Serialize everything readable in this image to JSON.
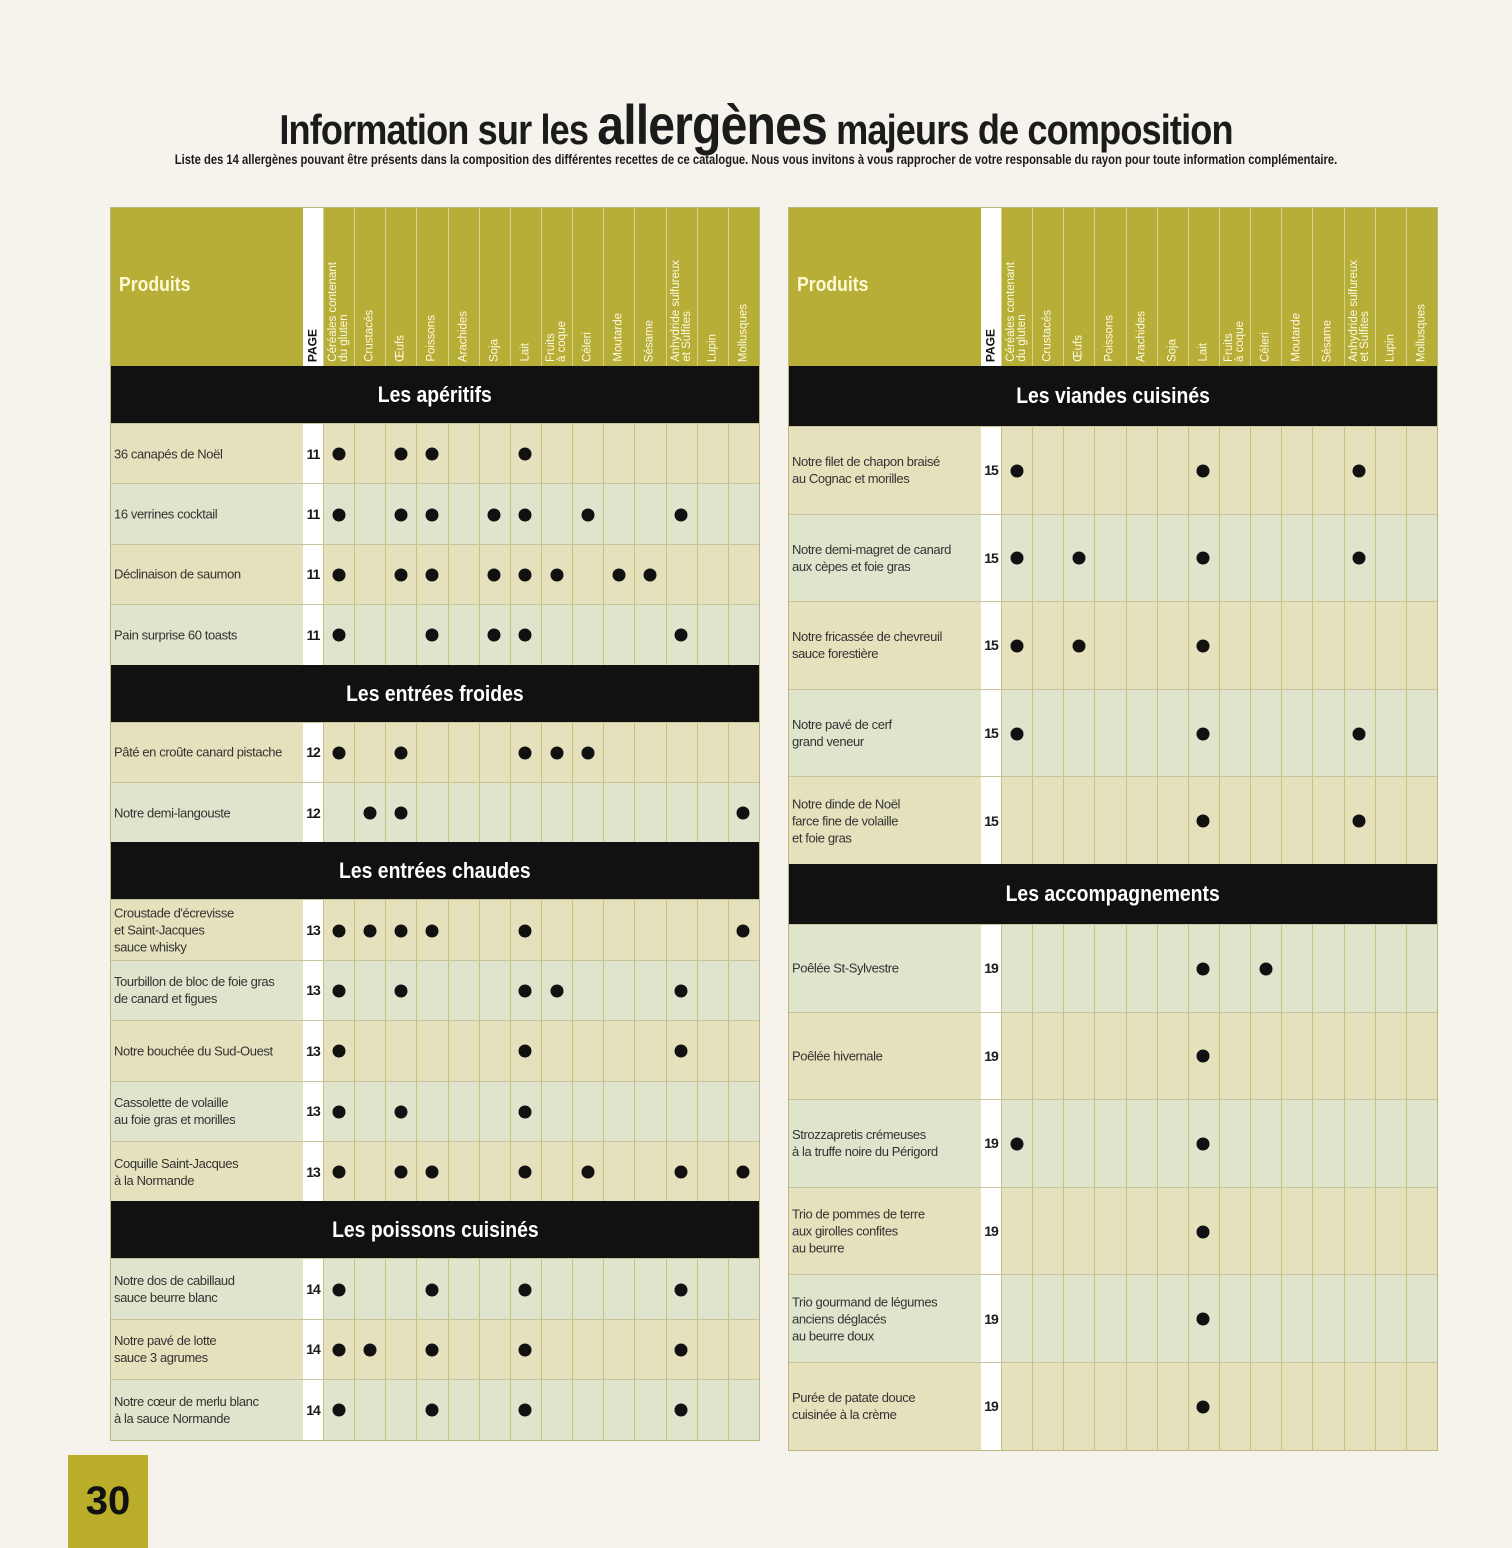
{
  "title_pre": "Information sur les",
  "title_big": "allergènes",
  "title_post": "majeurs de composition",
  "subtitle": "Liste des 14 allergènes pouvant être présents dans la composition des différentes recettes de ce catalogue. Nous vous invitons à vous rapprocher de votre responsable du rayon pour toute information complémentaire.",
  "page_number": "30",
  "header": {
    "produits": "Produits",
    "page": "PAGE",
    "allergens": [
      "Céréales contenant\ndu gluten",
      "Crustacés",
      "Œufs",
      "Poissons",
      "Arachides",
      "Soja",
      "Lait",
      "Fruits\nà coque",
      "Céleri",
      "Moutarde",
      "Sésame",
      "Anhydride sulfureux\net Sulfites",
      "Lupin",
      "Mollusques"
    ]
  },
  "left_table": {
    "sections": [
      {
        "title": "Les apéritifs",
        "rows": [
          {
            "name": "36 canapés de Noël",
            "page": "11",
            "marks": [
              1,
              0,
              1,
              1,
              0,
              0,
              1,
              0,
              0,
              0,
              0,
              0,
              0,
              0
            ]
          },
          {
            "name": "16 verrines cocktail",
            "page": "11",
            "marks": [
              1,
              0,
              1,
              1,
              0,
              1,
              1,
              0,
              1,
              0,
              0,
              1,
              0,
              0
            ]
          },
          {
            "name": "Déclinaison de saumon",
            "page": "11",
            "marks": [
              1,
              0,
              1,
              1,
              0,
              1,
              1,
              1,
              0,
              1,
              1,
              0,
              0,
              0
            ]
          },
          {
            "name": "Pain surprise 60 toasts",
            "page": "11",
            "marks": [
              1,
              0,
              0,
              1,
              0,
              1,
              1,
              0,
              0,
              0,
              0,
              1,
              0,
              0
            ]
          }
        ]
      },
      {
        "title": "Les entrées froides",
        "rows": [
          {
            "name": "Pâté en croûte canard pistache",
            "page": "12",
            "marks": [
              1,
              0,
              1,
              0,
              0,
              0,
              1,
              1,
              1,
              0,
              0,
              0,
              0,
              0
            ]
          },
          {
            "name": "Notre demi-langouste",
            "page": "12",
            "marks": [
              0,
              1,
              1,
              0,
              0,
              0,
              0,
              0,
              0,
              0,
              0,
              0,
              0,
              1
            ]
          }
        ]
      },
      {
        "title": "Les entrées chaudes",
        "rows": [
          {
            "name": "Croustade d'écrevisse\net Saint-Jacques\nsauce whisky",
            "page": "13",
            "marks": [
              1,
              1,
              1,
              1,
              0,
              0,
              1,
              0,
              0,
              0,
              0,
              0,
              0,
              1
            ]
          },
          {
            "name": "Tourbillon de bloc de foie gras\nde canard et figues",
            "page": "13",
            "marks": [
              1,
              0,
              1,
              0,
              0,
              0,
              1,
              1,
              0,
              0,
              0,
              1,
              0,
              0
            ]
          },
          {
            "name": "Notre bouchée du Sud-Ouest",
            "page": "13",
            "marks": [
              1,
              0,
              0,
              0,
              0,
              0,
              1,
              0,
              0,
              0,
              0,
              1,
              0,
              0
            ]
          },
          {
            "name": "Cassolette de volaille\nau foie gras et morilles",
            "page": "13",
            "marks": [
              1,
              0,
              1,
              0,
              0,
              0,
              1,
              0,
              0,
              0,
              0,
              0,
              0,
              0
            ]
          },
          {
            "name": "Coquille Saint-Jacques\nà la Normande",
            "page": "13",
            "marks": [
              1,
              0,
              1,
              1,
              0,
              0,
              1,
              0,
              1,
              0,
              0,
              1,
              0,
              1
            ]
          }
        ]
      },
      {
        "title": "Les poissons cuisinés",
        "rows": [
          {
            "name": "Notre dos de cabillaud\nsauce beurre blanc",
            "page": "14",
            "marks": [
              1,
              0,
              0,
              1,
              0,
              0,
              1,
              0,
              0,
              0,
              0,
              1,
              0,
              0
            ]
          },
          {
            "name": "Notre pavé de lotte\nsauce 3 agrumes",
            "page": "14",
            "marks": [
              1,
              1,
              0,
              1,
              0,
              0,
              1,
              0,
              0,
              0,
              0,
              1,
              0,
              0
            ]
          },
          {
            "name": "Notre cœur de merlu blanc\nà la sauce Normande",
            "page": "14",
            "marks": [
              1,
              0,
              0,
              1,
              0,
              0,
              1,
              0,
              0,
              0,
              0,
              1,
              0,
              0
            ]
          }
        ]
      }
    ]
  },
  "right_table": {
    "sections": [
      {
        "title": "Les viandes cuisinés",
        "rows": [
          {
            "name": "Notre filet de chapon braisé\nau Cognac et morilles",
            "page": "15",
            "marks": [
              1,
              0,
              0,
              0,
              0,
              0,
              1,
              0,
              0,
              0,
              0,
              1,
              0,
              0
            ]
          },
          {
            "name": "Notre demi-magret de canard\naux cèpes et foie gras",
            "page": "15",
            "marks": [
              1,
              0,
              1,
              0,
              0,
              0,
              1,
              0,
              0,
              0,
              0,
              1,
              0,
              0
            ]
          },
          {
            "name": "Notre fricassée de chevreuil\nsauce forestière",
            "page": "15",
            "marks": [
              1,
              0,
              1,
              0,
              0,
              0,
              1,
              0,
              0,
              0,
              0,
              0,
              0,
              0
            ]
          },
          {
            "name": "Notre pavé de cerf\ngrand veneur",
            "page": "15",
            "marks": [
              1,
              0,
              0,
              0,
              0,
              0,
              1,
              0,
              0,
              0,
              0,
              1,
              0,
              0
            ]
          },
          {
            "name": "Notre dinde de Noël\nfarce fine de volaille\net foie gras",
            "page": "15",
            "marks": [
              0,
              0,
              0,
              0,
              0,
              0,
              1,
              0,
              0,
              0,
              0,
              1,
              0,
              0
            ]
          }
        ]
      },
      {
        "title": "Les accompagnements",
        "rows": [
          {
            "name": "Poêlée St-Sylvestre",
            "page": "19",
            "marks": [
              0,
              0,
              0,
              0,
              0,
              0,
              1,
              0,
              1,
              0,
              0,
              0,
              0,
              0
            ]
          },
          {
            "name": "Poêlée hivernale",
            "page": "19",
            "marks": [
              0,
              0,
              0,
              0,
              0,
              0,
              1,
              0,
              0,
              0,
              0,
              0,
              0,
              0
            ]
          },
          {
            "name": "Strozzapretis crémeuses\nà la truffe noire du Périgord",
            "page": "19",
            "marks": [
              1,
              0,
              0,
              0,
              0,
              0,
              1,
              0,
              0,
              0,
              0,
              0,
              0,
              0
            ]
          },
          {
            "name": "Trio de pommes de terre\naux girolles confites\nau beurre",
            "page": "19",
            "marks": [
              0,
              0,
              0,
              0,
              0,
              0,
              1,
              0,
              0,
              0,
              0,
              0,
              0,
              0
            ]
          },
          {
            "name": "Trio gourmand de légumes\nanciens déglacés\nau beurre doux",
            "page": "19",
            "marks": [
              0,
              0,
              0,
              0,
              0,
              0,
              1,
              0,
              0,
              0,
              0,
              0,
              0,
              0
            ]
          },
          {
            "name": "Purée de patate douce\ncuisinée à la crème",
            "page": "19",
            "marks": [
              0,
              0,
              0,
              0,
              0,
              0,
              1,
              0,
              0,
              0,
              0,
              0,
              0,
              0
            ]
          }
        ]
      }
    ]
  }
}
